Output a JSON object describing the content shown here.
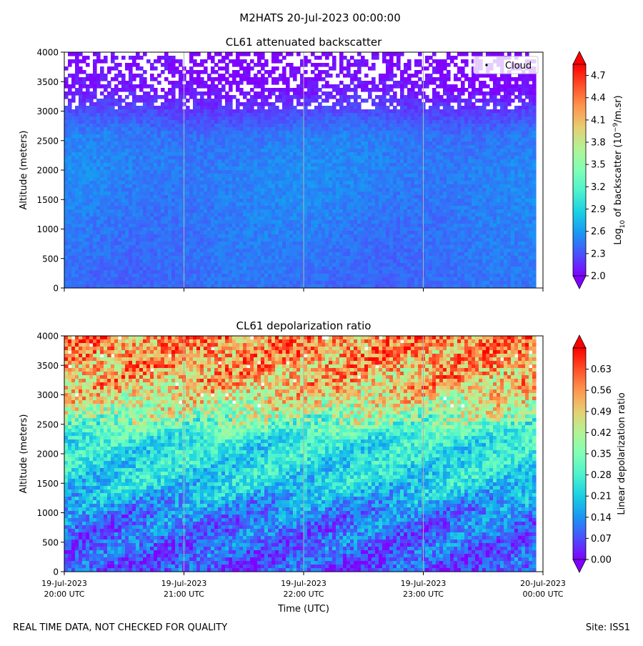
{
  "figure": {
    "title": "M2HATS 20-Jul-2023 00:00:00",
    "footer_left": "REAL TIME DATA, NOT CHECKED FOR QUALITY",
    "footer_right": "Site: ISS1",
    "xlabel": "Time (UTC)",
    "xticks": [
      {
        "date": "19-Jul-2023",
        "time": "20:00 UTC"
      },
      {
        "date": "19-Jul-2023",
        "time": "21:00 UTC"
      },
      {
        "date": "19-Jul-2023",
        "time": "22:00 UTC"
      },
      {
        "date": "19-Jul-2023",
        "time": "23:00 UTC"
      },
      {
        "date": "20-Jul-2023",
        "time": "00:00 UTC"
      }
    ]
  },
  "chart_data": [
    {
      "type": "heatmap",
      "title": "CL61 attenuated backscatter",
      "ylabel": "Altitude (meters)",
      "ylim": [
        0,
        4000
      ],
      "yticks": [
        0,
        500,
        1000,
        1500,
        2000,
        2500,
        3000,
        3500,
        4000
      ],
      "x_range": [
        "19-Jul-2023 20:00 UTC",
        "20-Jul-2023 00:00 UTC"
      ],
      "colorbar": {
        "label_base": "Log",
        "label_sub": "10",
        "label_mid": " of backscatter (10",
        "label_sup": "−9",
        "label_end": "/m.sr)",
        "min": 2.0,
        "max": 4.85,
        "ticks": [
          "2.0",
          "2.3",
          "2.6",
          "2.9",
          "3.2",
          "3.5",
          "3.8",
          "4.1",
          "4.4",
          "4.7"
        ],
        "extend": "both"
      },
      "legend": {
        "entries": [
          "Cloud"
        ],
        "placement": "top-right"
      },
      "profile": [
        {
          "altitude": 0,
          "value": 2.4
        },
        {
          "altitude": 1000,
          "value": 2.45
        },
        {
          "altitude": 2000,
          "value": 2.5
        },
        {
          "altitude": 2600,
          "value": 2.45
        },
        {
          "altitude": 3000,
          "value": 2.25
        },
        {
          "altitude": 3400,
          "value": 2.05
        },
        {
          "altitude": 4000,
          "value": 2.0
        }
      ],
      "missing_data_above": 3000
    },
    {
      "type": "heatmap",
      "title": "CL61 depolarization ratio",
      "ylabel": "Altitude (meters)",
      "ylim": [
        0,
        4000
      ],
      "yticks": [
        0,
        500,
        1000,
        1500,
        2000,
        2500,
        3000,
        3500,
        4000
      ],
      "x_range": [
        "19-Jul-2023 20:00 UTC",
        "20-Jul-2023 00:00 UTC"
      ],
      "colorbar": {
        "label": "Linear depolarization ratio",
        "min": 0.0,
        "max": 0.7,
        "ticks": [
          "0.00",
          "0.07",
          "0.14",
          "0.21",
          "0.28",
          "0.35",
          "0.42",
          "0.49",
          "0.56",
          "0.63"
        ],
        "extend": "both"
      },
      "profile": [
        {
          "altitude": 0,
          "value": 0.07
        },
        {
          "altitude": 1000,
          "value": 0.12
        },
        {
          "altitude": 1500,
          "value": 0.22
        },
        {
          "altitude": 2200,
          "value": 0.25
        },
        {
          "altitude": 2700,
          "value": 0.4
        },
        {
          "altitude": 3200,
          "value": 0.52
        },
        {
          "altitude": 4000,
          "value": 0.58
        }
      ]
    }
  ]
}
